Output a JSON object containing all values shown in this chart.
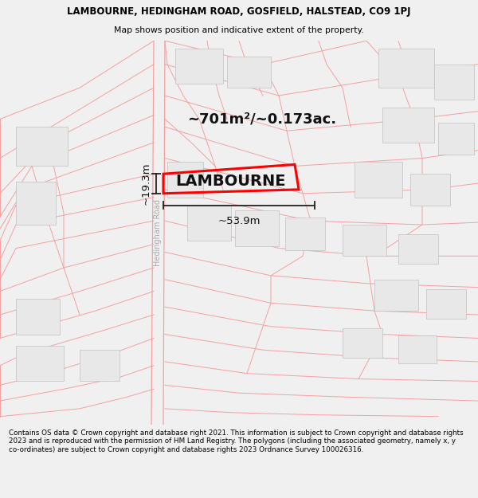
{
  "title_line1": "LAMBOURNE, HEDINGHAM ROAD, GOSFIELD, HALSTEAD, CO9 1PJ",
  "title_line2": "Map shows position and indicative extent of the property.",
  "footer": "Contains OS data © Crown copyright and database right 2021. This information is subject to Crown copyright and database rights 2023 and is reproduced with the permission of HM Land Registry. The polygons (including the associated geometry, namely x, y co-ordinates) are subject to Crown copyright and database rights 2023 Ordnance Survey 100026316.",
  "property_label": "LAMBOURNE",
  "area_label": "~701m²/~0.173ac.",
  "width_label": "~53.9m",
  "height_label": "~19.3m",
  "road_label": "Hedingham Road",
  "map_bg": "#ffffff",
  "road_color": "#f5a0a0",
  "building_face": "#e8e8e8",
  "building_edge": "#c0c0c0",
  "property_color": "#ff0000",
  "dim_color": "#222222",
  "title_color": "#000000",
  "footer_color": "#000000",
  "header_bg": "#f0f0f0",
  "footer_bg": "#f0f0f0"
}
